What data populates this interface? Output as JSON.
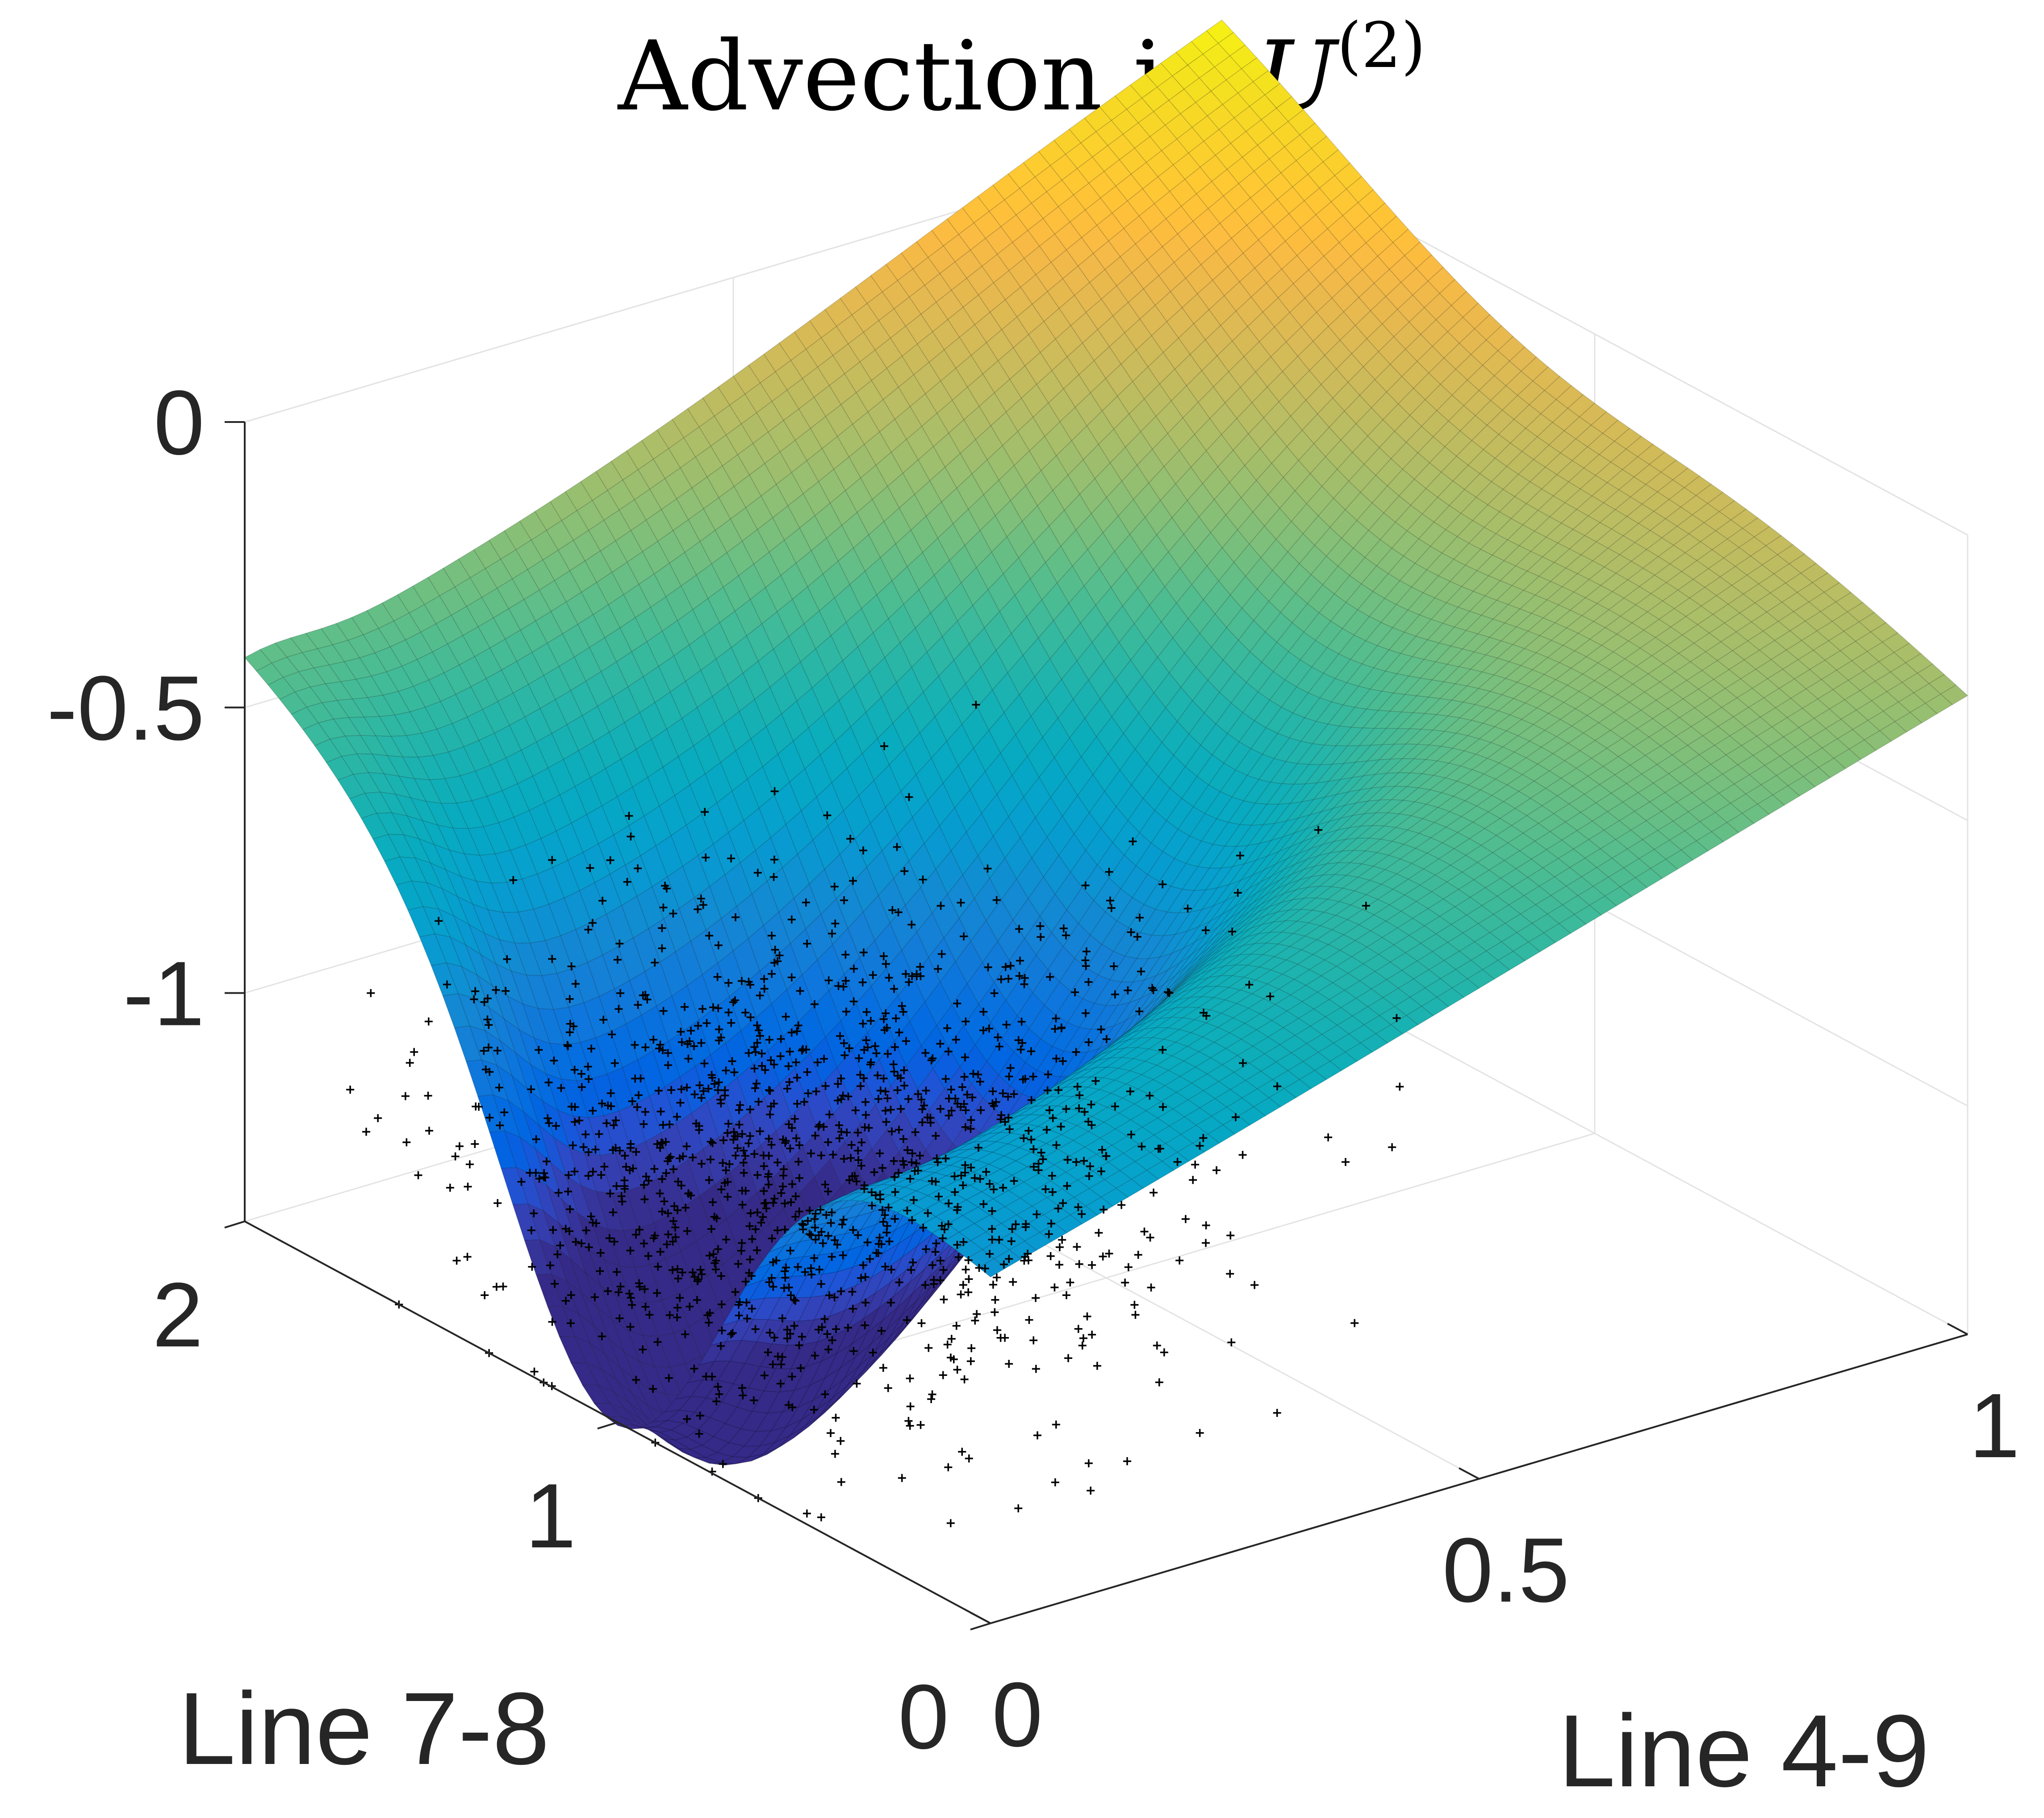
{
  "chart_data": {
    "type": "surface",
    "title": {
      "text": "Advection in ",
      "symbol": "U",
      "superscript": "(2)"
    },
    "xlabel": "Line 4-9",
    "ylabel": "Line 7-8",
    "zlabel": "",
    "xlim": [
      0,
      1
    ],
    "ylim": [
      0,
      2
    ],
    "zlim": [
      -1.4,
      0
    ],
    "x_ticks": [
      "0",
      "0.5",
      "1"
    ],
    "y_ticks": [
      "0",
      "1",
      "2"
    ],
    "z_ticks": [
      "0",
      "-0.5",
      "-1"
    ],
    "colormap": "parula",
    "grid": true,
    "surface_corners": [
      {
        "x": 0,
        "y": 0,
        "z": -0.79
      },
      {
        "x": 1,
        "y": 0,
        "z": -0.28
      },
      {
        "x": 1,
        "y": 2,
        "z": 0.22
      },
      {
        "x": 0,
        "y": 2,
        "z": -0.37
      }
    ],
    "surface_minimum": {
      "x": 0.05,
      "y": 1.0,
      "z": -1.23
    },
    "scatter": {
      "marker": "+",
      "color": "#000000",
      "center": {
        "x": 0.2,
        "y": 1.0,
        "z": -1.05
      },
      "count": 1200
    }
  }
}
